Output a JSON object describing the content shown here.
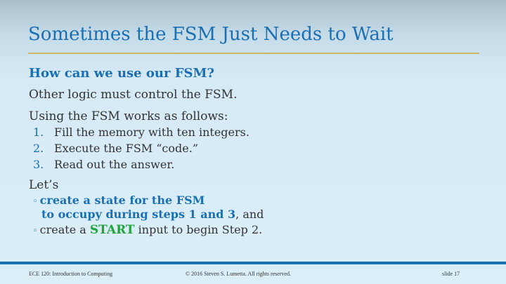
{
  "slide": {
    "title": "Sometimes the FSM Just Needs to Wait",
    "subheading": "How can we use our FSM?",
    "para1": "Other logic must control the FSM.",
    "para2": "Using the FSM works as follows:",
    "steps": [
      {
        "num": "1.",
        "text": "Fill the memory with ten integers."
      },
      {
        "num": "2.",
        "text": "Execute the FSM “code.”"
      },
      {
        "num": "3.",
        "text": "Read out the answer."
      }
    ],
    "lets": "Let’s",
    "bullet1": {
      "mark": "◦",
      "bold_line1": "create a state for the FSM",
      "bold_line2": "to occupy during steps 1 and 3",
      "rest": ", and"
    },
    "bullet2": {
      "mark": "◦",
      "before": "create a ",
      "highlight": "START",
      "after": " input to begin Step 2."
    }
  },
  "footer": {
    "course": "ECE 120: Introduction to Computing",
    "copyright": "© 2016 Steven S. Lumetta.  All rights reserved.",
    "slide_number": "slide 17"
  },
  "colors": {
    "accent_blue": "#1a6fb3",
    "accent_green": "#22a33c",
    "rule_gold": "#c9b764"
  }
}
